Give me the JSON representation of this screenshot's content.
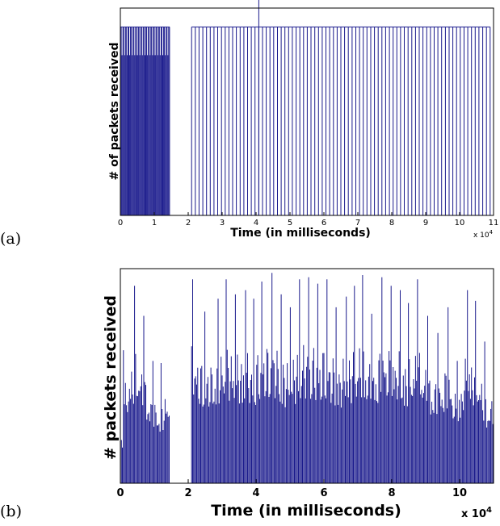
{
  "chart_data": [
    {
      "panel": "(a)",
      "type": "bar",
      "xlabel": "Time (in milliseconds)",
      "ylabel": "# of packets received",
      "xlim": [
        0,
        110000
      ],
      "x_tick_labels": [
        "0",
        "1",
        "2",
        "3",
        "4",
        "5",
        "6",
        "7",
        "8",
        "9",
        "10",
        "11"
      ],
      "x_multiplier": {
        "base": "x 10",
        "exp": "4"
      },
      "color": "#1a1a8c",
      "ylim": [
        0,
        1.1
      ],
      "segments": [
        {
          "x0": 0,
          "x1": 14500,
          "step": 250,
          "value": 1.0,
          "alt": 0.85
        },
        {
          "x0": 21000,
          "x1": 109500,
          "step": 1100,
          "value": 1.0,
          "alt": 1.0
        }
      ],
      "spikes": [
        {
          "x": 40800,
          "value": 1.17
        }
      ]
    },
    {
      "panel": "(b)",
      "type": "bar",
      "xlabel": "Time (in milliseconds)",
      "ylabel": "# packets received",
      "xlim": [
        0,
        110000
      ],
      "x_tick_labels": [
        "0",
        "2",
        "4",
        "6",
        "8",
        "10"
      ],
      "x_ticks": [
        0,
        20000,
        40000,
        60000,
        80000,
        100000
      ],
      "x_multiplier": {
        "base": "x 10",
        "exp": "4"
      },
      "color": "#1a1a8c",
      "ylim": [
        0,
        1.0
      ],
      "segments": [
        {
          "x0": 0,
          "x1": 14500,
          "step": 300
        },
        {
          "x0": 21000,
          "x1": 110000,
          "step": 300
        }
      ],
      "peaks": [
        {
          "x": 800,
          "value": 0.62
        },
        {
          "x": 4200,
          "value": 0.92
        },
        {
          "x": 6800,
          "value": 0.78
        },
        {
          "x": 9500,
          "value": 0.57
        },
        {
          "x": 12000,
          "value": 0.56
        },
        {
          "x": 21200,
          "value": 0.95
        },
        {
          "x": 25000,
          "value": 0.8
        },
        {
          "x": 28700,
          "value": 0.86
        },
        {
          "x": 31200,
          "value": 0.95
        },
        {
          "x": 34000,
          "value": 0.88
        },
        {
          "x": 37000,
          "value": 0.9
        },
        {
          "x": 39200,
          "value": 0.86
        },
        {
          "x": 41800,
          "value": 0.94
        },
        {
          "x": 44600,
          "value": 0.98
        },
        {
          "x": 47500,
          "value": 0.88
        },
        {
          "x": 50000,
          "value": 0.82
        },
        {
          "x": 52800,
          "value": 0.95
        },
        {
          "x": 55600,
          "value": 0.96
        },
        {
          "x": 58200,
          "value": 0.93
        },
        {
          "x": 61000,
          "value": 0.95
        },
        {
          "x": 63700,
          "value": 0.82
        },
        {
          "x": 66500,
          "value": 0.87
        },
        {
          "x": 69000,
          "value": 0.92
        },
        {
          "x": 71500,
          "value": 0.97
        },
        {
          "x": 74200,
          "value": 0.79
        },
        {
          "x": 77000,
          "value": 0.96
        },
        {
          "x": 79800,
          "value": 0.92
        },
        {
          "x": 82500,
          "value": 0.9
        },
        {
          "x": 85000,
          "value": 0.84
        },
        {
          "x": 87600,
          "value": 0.95
        },
        {
          "x": 90500,
          "value": 0.78
        },
        {
          "x": 93500,
          "value": 0.7
        },
        {
          "x": 96500,
          "value": 0.82
        },
        {
          "x": 99200,
          "value": 0.57
        },
        {
          "x": 102200,
          "value": 0.9
        },
        {
          "x": 104800,
          "value": 0.85
        },
        {
          "x": 107500,
          "value": 0.66
        }
      ]
    }
  ]
}
